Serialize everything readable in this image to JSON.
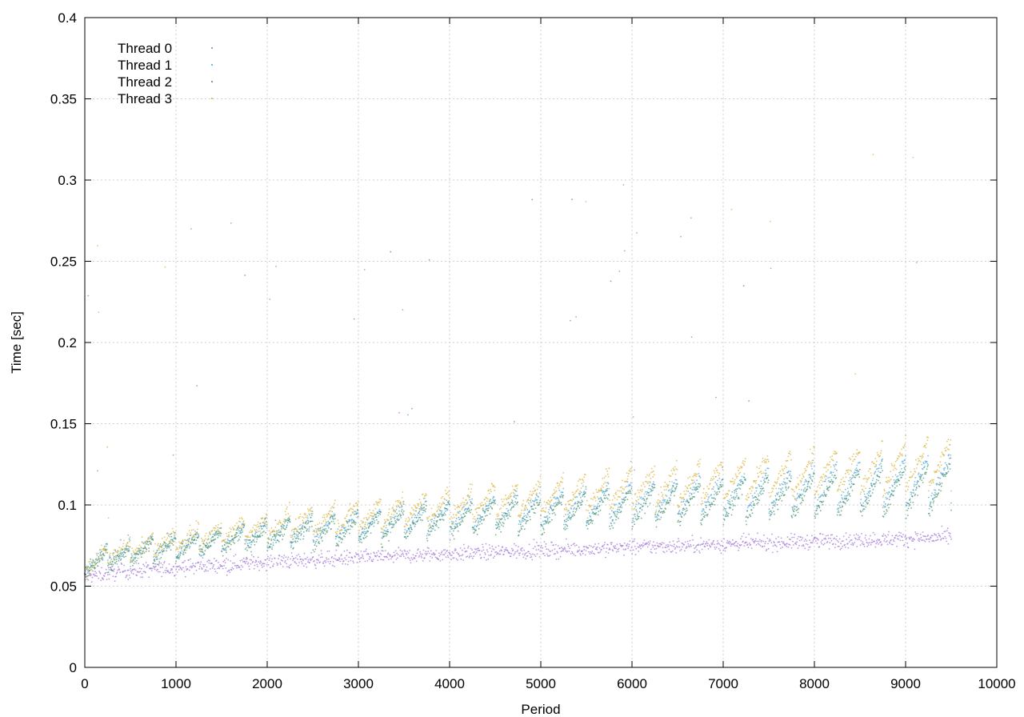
{
  "chart_data": {
    "type": "scatter",
    "title": "",
    "xlabel": "Period",
    "ylabel": "Time [sec]",
    "xlim": [
      0,
      10000
    ],
    "ylim": [
      0,
      0.4
    ],
    "xticks": [
      0,
      1000,
      2000,
      3000,
      4000,
      5000,
      6000,
      7000,
      8000,
      9000,
      10000
    ],
    "xtick_labels": [
      "0",
      "1000",
      "2000",
      "3000",
      "4000",
      "5000",
      "6000",
      "7000",
      "8000",
      "9000",
      "10000"
    ],
    "yticks": [
      0,
      0.05,
      0.1,
      0.15,
      0.2,
      0.25,
      0.3,
      0.35,
      0.4
    ],
    "ytick_labels": [
      "0",
      "0.05",
      "0.1",
      "0.15",
      "0.2",
      "0.25",
      "0.3",
      "0.35",
      "0.4"
    ],
    "grid": true,
    "legend_position": "top-left",
    "series": [
      {
        "name": "Thread 0",
        "color": "#9b6fd6",
        "x_range": [
          0,
          9500
        ],
        "y_start": 0.055,
        "y_end": 0.08
      },
      {
        "name": "Thread 1",
        "color": "#4aa3d8",
        "x_range": [
          0,
          9500
        ],
        "y_start": 0.06,
        "y_end": 0.11
      },
      {
        "name": "Thread 2",
        "color": "#3f8f6a",
        "x_range": [
          0,
          9500
        ],
        "y_start": 0.06,
        "y_end": 0.105
      },
      {
        "name": "Thread 3",
        "color": "#d8b030",
        "x_range": [
          0,
          9500
        ],
        "y_start": 0.06,
        "y_end": 0.12
      }
    ]
  }
}
